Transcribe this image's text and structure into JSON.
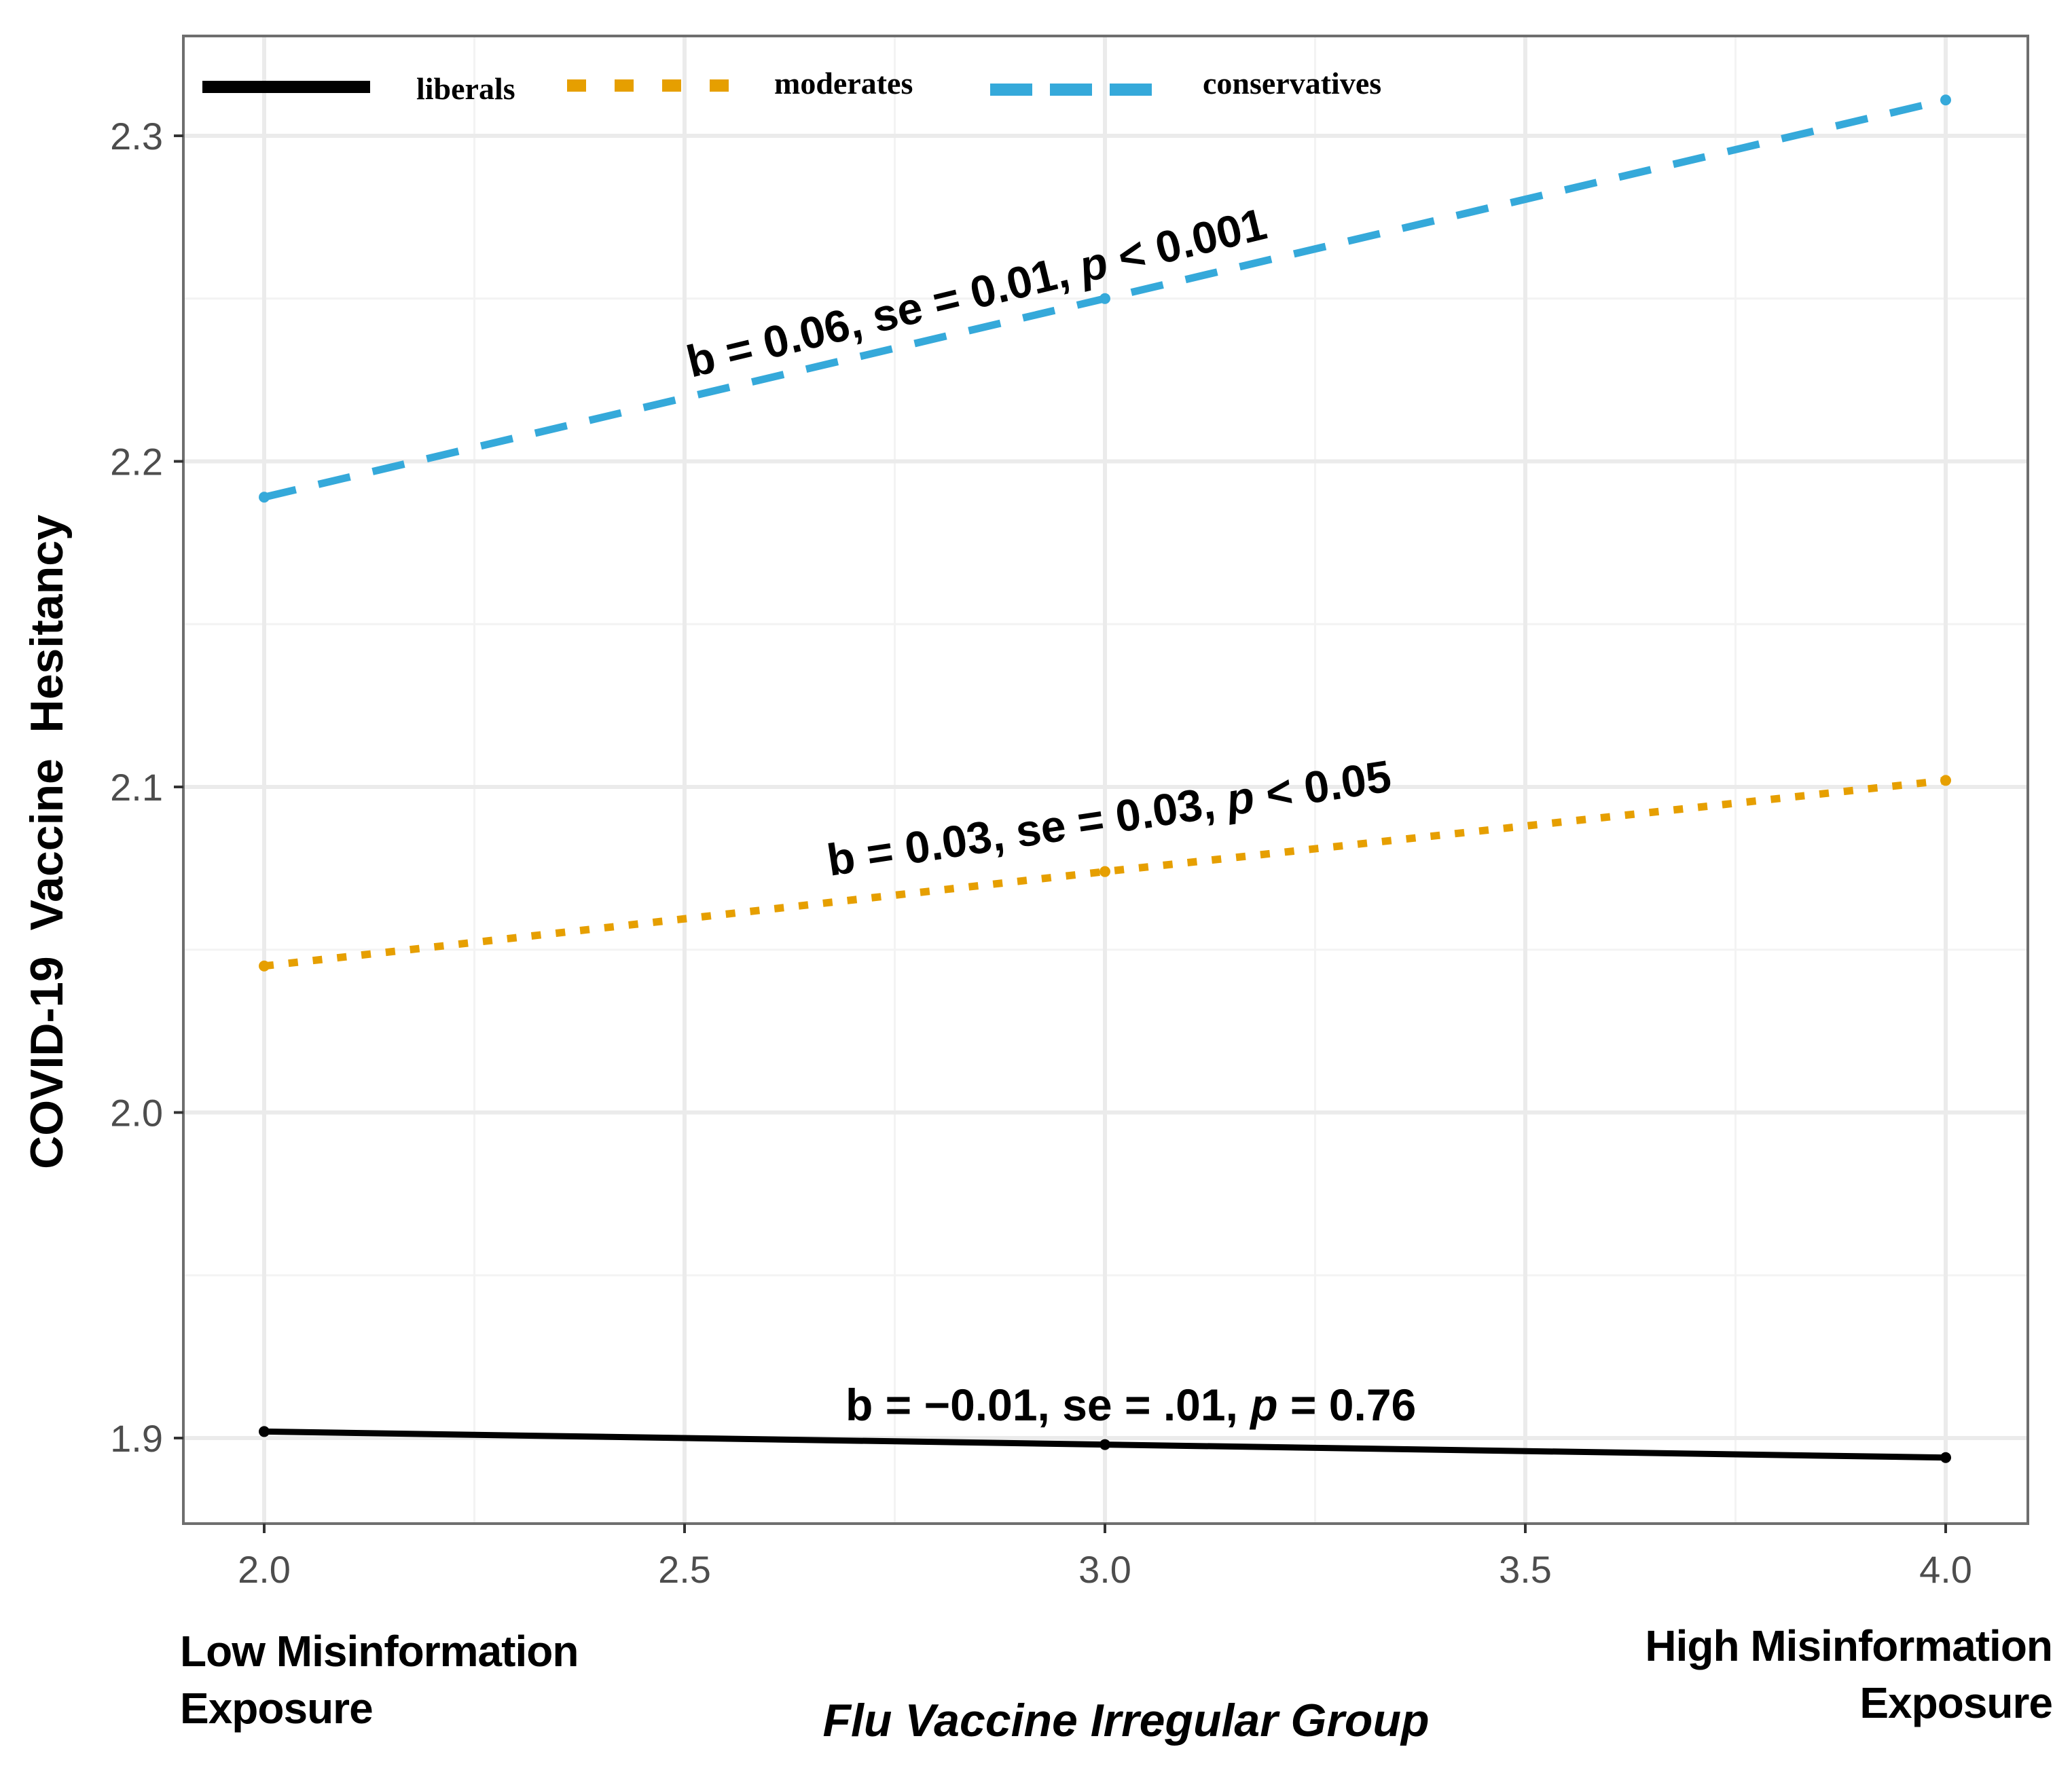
{
  "chart_data": {
    "type": "line",
    "title": "",
    "xlabel": "Flu Vaccine Irregular Group",
    "ylabel": "COVID-19  Vaccine  Hesitancy",
    "x_end_labels": {
      "low": [
        "Low Misinformation",
        "Exposure"
      ],
      "high": [
        "High Misinformation",
        "Exposure"
      ]
    },
    "xlim": [
      1.9,
      4.1
    ],
    "ylim": [
      1.874,
      2.333
    ],
    "x_ticks": [
      2.0,
      2.5,
      3.0,
      3.5,
      4.0
    ],
    "x_tick_labels": [
      "2.0",
      "2.5",
      "3.0",
      "3.5",
      "4.0"
    ],
    "y_ticks": [
      1.9,
      2.0,
      2.1,
      2.2,
      2.3
    ],
    "y_tick_labels": [
      "1.9",
      "2.0",
      "2.1",
      "2.2",
      "2.3"
    ],
    "grid": true,
    "legend_position": "top-left inside",
    "x": [
      2.0,
      3.0,
      4.0
    ],
    "series": [
      {
        "name": "liberals",
        "color": "#000000",
        "linestyle": "solid",
        "values": [
          1.902,
          1.898,
          1.894
        ],
        "annotation": {
          "pre": "b = −0.01, se = .01, ",
          "p": "p",
          "post": " = 0.76"
        }
      },
      {
        "name": "moderates",
        "color": "#E69F00",
        "linestyle": "dotted",
        "values": [
          2.045,
          2.074,
          2.102
        ],
        "annotation": {
          "pre": "b = 0.03, se = 0.03, ",
          "p": "p",
          "post": " < 0.05"
        }
      },
      {
        "name": "conservatives",
        "color": "#35A9DA",
        "linestyle": "dashed",
        "values": [
          2.189,
          2.25,
          2.311
        ],
        "annotation": {
          "pre": "b = 0.06, se = 0.01, ",
          "p": "p",
          "post": " < 0.001"
        }
      }
    ]
  }
}
